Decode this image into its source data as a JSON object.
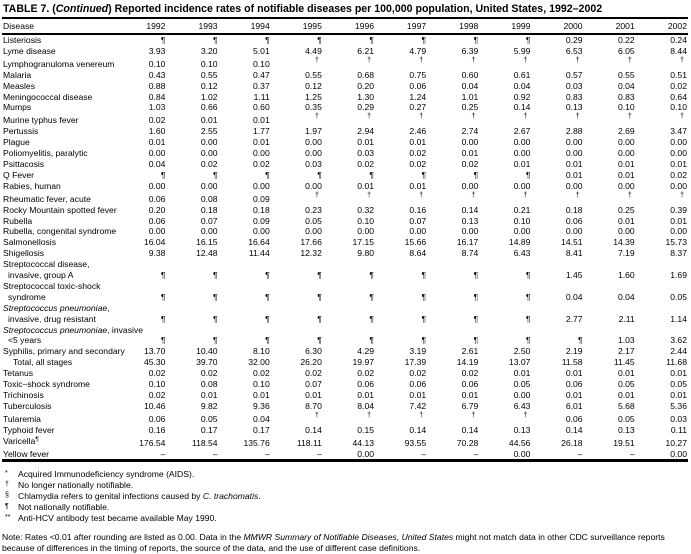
{
  "colors": {
    "ink": "#000000",
    "paper": "#ffffff"
  },
  "title": {
    "segments": [
      {
        "text": "TABLE 7. ("
      },
      {
        "text": "Continued",
        "italic": true
      },
      {
        "text": ") Reported incidence rates of notifiable diseases per 100,000 population, United States, 1992–2002"
      }
    ]
  },
  "table": {
    "disease_header": "Disease",
    "years": [
      "1992",
      "1993",
      "1994",
      "1995",
      "1996",
      "1997",
      "1998",
      "1999",
      "2000",
      "2001",
      "2002"
    ],
    "rows": [
      {
        "label": "Listeriosis",
        "values": [
          "¶",
          "¶",
          "¶",
          "¶",
          "¶",
          "¶",
          "¶",
          "¶",
          "0.29",
          "0.22",
          "0.24"
        ]
      },
      {
        "label": "Lyme disease",
        "values": [
          "3.93",
          "3.20",
          "5.01",
          "4.49",
          "6.21",
          "4.79",
          "6.39",
          "5.99",
          "6.53",
          "6.05",
          "8.44"
        ]
      },
      {
        "label": "Lymphogranuloma venereum",
        "values": [
          "0.10",
          "0.10",
          "0.10",
          "†",
          "†",
          "†",
          "†",
          "†",
          "†",
          "†",
          "†"
        ]
      },
      {
        "label": "Malaria",
        "values": [
          "0.43",
          "0.55",
          "0.47",
          "0.55",
          "0.68",
          "0.75",
          "0.60",
          "0.61",
          "0.57",
          "0.55",
          "0.51"
        ]
      },
      {
        "label": "Measles",
        "values": [
          "0.88",
          "0.12",
          "0.37",
          "0.12",
          "0.20",
          "0.06",
          "0.04",
          "0.04",
          "0.03",
          "0.04",
          "0.02"
        ]
      },
      {
        "label": "Meningococcal disease",
        "values": [
          "0.84",
          "1.02",
          "1.11",
          "1.25",
          "1.30",
          "1.24",
          "1.01",
          "0.92",
          "0.83",
          "0.83",
          "0.64"
        ]
      },
      {
        "label": "Mumps",
        "values": [
          "1.03",
          "0.66",
          "0.60",
          "0.35",
          "0.29",
          "0.27",
          "0.25",
          "0.14",
          "0.13",
          "0.10",
          "0.10"
        ]
      },
      {
        "label": "Murine typhus fever",
        "values": [
          "0.02",
          "0.01",
          "0.01",
          "†",
          "†",
          "†",
          "†",
          "†",
          "†",
          "†",
          "†"
        ]
      },
      {
        "label": "Pertussis",
        "values": [
          "1.60",
          "2.55",
          "1.77",
          "1.97",
          "2.94",
          "2.46",
          "2.74",
          "2.67",
          "2.88",
          "2.69",
          "3.47"
        ]
      },
      {
        "label": "Plague",
        "values": [
          "0.01",
          "0.00",
          "0.01",
          "0.00",
          "0.01",
          "0.01",
          "0.00",
          "0.00",
          "0.00",
          "0.00",
          "0.00"
        ]
      },
      {
        "label": "Poliomyelitis, paralytic",
        "values": [
          "0.00",
          "0.00",
          "0.00",
          "0.00",
          "0.03",
          "0.02",
          "0.01",
          "0.00",
          "0.00",
          "0.00",
          "0.00"
        ]
      },
      {
        "label": "Psittacosis",
        "values": [
          "0.04",
          "0.02",
          "0.02",
          "0.03",
          "0.02",
          "0.02",
          "0.02",
          "0.01",
          "0.01",
          "0.01",
          "0.01"
        ]
      },
      {
        "label": "Q Fever",
        "values": [
          "¶",
          "¶",
          "¶",
          "¶",
          "¶",
          "¶",
          "¶",
          "¶",
          "0.01",
          "0.01",
          "0.02"
        ]
      },
      {
        "label": "Rabies, human",
        "values": [
          "0.00",
          "0.00",
          "0.00",
          "0.00",
          "0.01",
          "0.01",
          "0.00",
          "0.00",
          "0.00",
          "0.00",
          "0.00"
        ]
      },
      {
        "label": "Rheumatic fever, acute",
        "values": [
          "0.06",
          "0.08",
          "0.09",
          "†",
          "†",
          "†",
          "†",
          "†",
          "†",
          "†",
          "†"
        ]
      },
      {
        "label": "Rocky Mountain spotted fever",
        "values": [
          "0.20",
          "0.18",
          "0.18",
          "0.23",
          "0.32",
          "0.16",
          "0.14",
          "0.21",
          "0.18",
          "0.25",
          "0.39"
        ]
      },
      {
        "label": "Rubella",
        "values": [
          "0.06",
          "0.07",
          "0.09",
          "0.05",
          "0.10",
          "0.07",
          "0.13",
          "0.10",
          "0.06",
          "0.01",
          "0.01"
        ]
      },
      {
        "label": "Rubella, congenital syndrome",
        "values": [
          "0.00",
          "0.00",
          "0.00",
          "0.00",
          "0.00",
          "0.00",
          "0.00",
          "0.00",
          "0.00",
          "0.00",
          "0.00"
        ]
      },
      {
        "label": "Salmonellosis",
        "values": [
          "16.04",
          "16.15",
          "16.64",
          "17.66",
          "17.15",
          "15.66",
          "16.17",
          "14.89",
          "14.51",
          "14.39",
          "15.73"
        ]
      },
      {
        "label": "Shigellosis",
        "values": [
          "9.38",
          "12.48",
          "11.44",
          "12.32",
          "9.80",
          "8.64",
          "8.74",
          "6.43",
          "8.41",
          "7.19",
          "8.37"
        ]
      },
      {
        "lines": [
          {
            "segments": [
              {
                "text": "Streptococcal disease,"
              }
            ]
          },
          {
            "segments": [
              {
                "text": "invasive, group A"
              }
            ],
            "indent": 1
          }
        ],
        "values": [
          "¶",
          "¶",
          "¶",
          "¶",
          "¶",
          "¶",
          "¶",
          "¶",
          "1.45",
          "1.60",
          "1.69"
        ]
      },
      {
        "lines": [
          {
            "segments": [
              {
                "text": "Streptococcal toxic-shock"
              }
            ]
          },
          {
            "segments": [
              {
                "text": "syndrome"
              }
            ],
            "indent": 1
          }
        ],
        "values": [
          "¶",
          "¶",
          "¶",
          "¶",
          "¶",
          "¶",
          "¶",
          "¶",
          "0.04",
          "0.04",
          "0.05"
        ]
      },
      {
        "lines": [
          {
            "segments": [
              {
                "text": "Streptococcus pneumoniae",
                "italic": true
              },
              {
                "text": ","
              }
            ]
          },
          {
            "segments": [
              {
                "text": "invasive, drug resistant"
              }
            ],
            "indent": 1
          }
        ],
        "values": [
          "¶",
          "¶",
          "¶",
          "¶",
          "¶",
          "¶",
          "¶",
          "¶",
          "2.77",
          "2.11",
          "1.14"
        ]
      },
      {
        "lines": [
          {
            "segments": [
              {
                "text": "Streptococcus pneumoniae",
                "italic": true
              },
              {
                "text": ", invasive"
              }
            ]
          },
          {
            "segments": [
              {
                "text": "<5 years"
              }
            ],
            "indent": 1
          }
        ],
        "values": [
          "¶",
          "¶",
          "¶",
          "¶",
          "¶",
          "¶",
          "¶",
          "¶",
          "¶",
          "1.03",
          "3.62"
        ]
      },
      {
        "label": "Syphilis, primary and secondary",
        "values": [
          "13.70",
          "10.40",
          "8.10",
          "6.30",
          "4.29",
          "3.19",
          "2.61",
          "2.50",
          "2.19",
          "2.17",
          "2.44"
        ]
      },
      {
        "label": "Total, all stages",
        "indent": 2,
        "values": [
          "45.30",
          "39.70",
          "32.00",
          "26.20",
          "19.97",
          "17.39",
          "14.19",
          "13.07",
          "11.58",
          "11.45",
          "11.68"
        ]
      },
      {
        "label": "Tetanus",
        "values": [
          "0.02",
          "0.02",
          "0.02",
          "0.02",
          "0.02",
          "0.02",
          "0.02",
          "0.01",
          "0.01",
          "0.01",
          "0.01"
        ]
      },
      {
        "label": "Toxic–shock syndrome",
        "values": [
          "0.10",
          "0.08",
          "0.10",
          "0.07",
          "0.06",
          "0.06",
          "0.06",
          "0.05",
          "0.06",
          "0.05",
          "0.05"
        ]
      },
      {
        "label": "Trichinosis",
        "values": [
          "0.02",
          "0.01",
          "0.01",
          "0.01",
          "0.01",
          "0.01",
          "0.01",
          "0.00",
          "0.01",
          "0.01",
          "0.01"
        ]
      },
      {
        "label": "Tuberculosis",
        "values": [
          "10.46",
          "9.82",
          "9.36",
          "8.70",
          "8.04",
          "7.42",
          "6.79",
          "6.43",
          "6.01",
          "5.68",
          "5.36"
        ]
      },
      {
        "label": "Tularemia",
        "values": [
          "0.06",
          "0.05",
          "0.04",
          "†",
          "†",
          "†",
          "†",
          "†",
          "0.06",
          "0.05",
          "0.03"
        ]
      },
      {
        "label": "Typhoid fever",
        "values": [
          "0.16",
          "0.17",
          "0.17",
          "0.14",
          "0.15",
          "0.14",
          "0.14",
          "0.13",
          "0.14",
          "0.13",
          "0.11"
        ]
      },
      {
        "lines": [
          {
            "segments": [
              {
                "text": "Varicella"
              },
              {
                "text": "¶",
                "sup": true
              }
            ]
          }
        ],
        "values": [
          "176.54",
          "118.54",
          "135.76",
          "118.11",
          "44.13",
          "93.55",
          "70.28",
          "44.56",
          "26.18",
          "19.51",
          "10.27"
        ]
      },
      {
        "label": "Yellow fever",
        "values": [
          "–",
          "–",
          "–",
          "–",
          "0.00",
          "–",
          "–",
          "0.00",
          "–",
          "–",
          "0.00"
        ]
      }
    ]
  },
  "footnotes": [
    {
      "marker": "*",
      "segments": [
        {
          "text": "Acquired Immunodeficiency syndrome (AIDS)."
        }
      ]
    },
    {
      "marker": "†",
      "segments": [
        {
          "text": "No longer nationally notifiable."
        }
      ]
    },
    {
      "marker": "§",
      "segments": [
        {
          "text": "Chlamydia refers to genital infections caused by "
        },
        {
          "text": "C. trachomatis",
          "italic": true
        },
        {
          "text": "."
        }
      ]
    },
    {
      "marker": "¶",
      "segments": [
        {
          "text": "Not nationally notifiable."
        }
      ]
    },
    {
      "marker": "**",
      "segments": [
        {
          "text": "Anti-HCV antibody test became available May 1990."
        }
      ]
    }
  ],
  "note": {
    "segments": [
      {
        "text": "Note: Rates <0.01 after rounding are listed as 0.00.  Data in the "
      },
      {
        "text": "MMWR Summary of Notifiable Diseases, United States",
        "italic": true
      },
      {
        "text": " might not match data in other CDC surveillance reports because of differences in the timing of reports, the source of the data, and the use of different case definitions."
      }
    ]
  }
}
